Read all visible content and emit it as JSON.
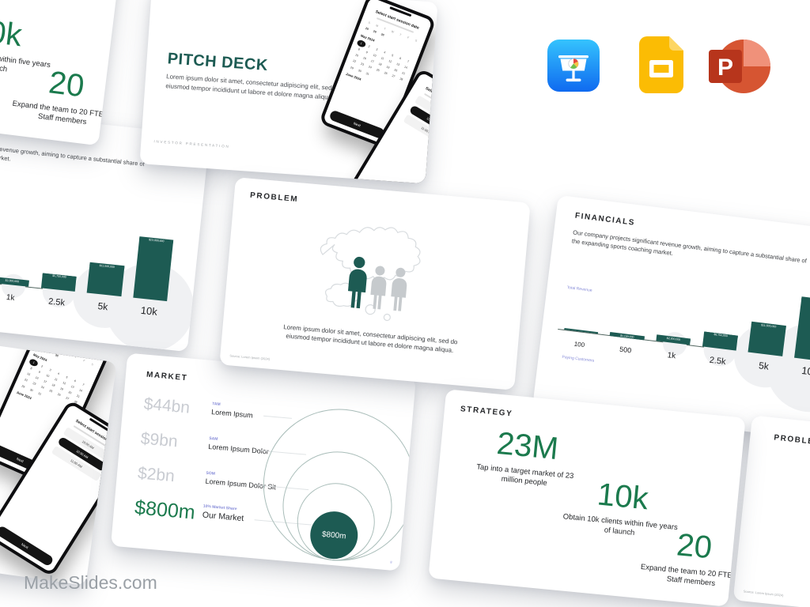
{
  "page": {
    "brand": "MakeSlides.com"
  },
  "colors": {
    "teal": "#1d5b53",
    "green": "#1b7a4d",
    "purple": "#878cd8",
    "muted_value": "#c9ccd2",
    "deco_circle": "#f0f1f3"
  },
  "app_icons": [
    "keynote",
    "google-slides",
    "powerpoint"
  ],
  "slides": {
    "pitch_deck": {
      "title": "PITCH DECK",
      "body": "Lorem ipsum dolor sit amet, consectetur adipiscing elit, sed do eiusmod tempor incididunt ut labore et dolore magna aliqua",
      "footer": "INVESTOR PRESENTATION"
    },
    "phone_calendar": {
      "heading": "Select start session date",
      "weekdays": [
        "S",
        "M",
        "T",
        "W",
        "T",
        "F",
        "S"
      ],
      "prev_days": [
        "28",
        "29",
        "30"
      ],
      "month1": "May 2024",
      "days_in_month": 31,
      "selected_day": 1,
      "month2": "June 2024",
      "button": "Next"
    },
    "phone_time": {
      "heading": "Select start session time",
      "slots": [
        "10:00 AM",
        "10:30 AM",
        "11:00 AM"
      ],
      "selected": "10:30 AM"
    },
    "problem": {
      "title": "PROBLEM",
      "body": "Lorem ipsum dolor sit amet, consectetur adipiscing elit, sed do eiusmod tempor incididunt ut labore et dolore magna aliqua.",
      "source": "Source: Lorem Ipsum (2024)"
    },
    "financials": {
      "title": "FINANCIALS",
      "body": "Our company projects significant revenue growth, aiming to capture a substantial share of the expanding sports coaching market.",
      "chart_data": {
        "type": "bar",
        "categories": [
          "100",
          "500",
          "1k",
          "2.5k",
          "5k",
          "10k"
        ],
        "values": [
          230000,
          1150000,
          2300000,
          5750000,
          11500000,
          23000000
        ],
        "bar_labels": [
          "",
          "$1,150,000",
          "$2,300,000",
          "$5,750,000",
          "$11,500,000",
          "$23,000,000"
        ],
        "ylabel": "Total Revenue",
        "xlabel": "Paying Customers",
        "ylim": [
          0,
          23000000
        ],
        "grid": false,
        "legend": false
      }
    },
    "market": {
      "title": "MARKET",
      "rows": [
        {
          "value": "$44bn",
          "tag": "TAM",
          "name": "Lorem Ipsum"
        },
        {
          "value": "$9bn",
          "tag": "SAM",
          "name": "Lorem Ipsum Dolor"
        },
        {
          "value": "$2bn",
          "tag": "SOM",
          "name": "Lorem Ipsum Dolor Sit"
        },
        {
          "value": "$800m",
          "tag": "10% Market Share",
          "name": "Our Market"
        }
      ],
      "bubble": "$800m",
      "page": "8"
    },
    "strategy": {
      "title": "STRATEGY",
      "stats": [
        {
          "value": "23M",
          "caption": "Tap into a target market of 23 million people"
        },
        {
          "value": "10k",
          "caption": "Obtain 10k clients within five years of launch"
        },
        {
          "value": "20",
          "caption": "Expand the team to 20 FTEs & Staff members"
        }
      ]
    }
  }
}
